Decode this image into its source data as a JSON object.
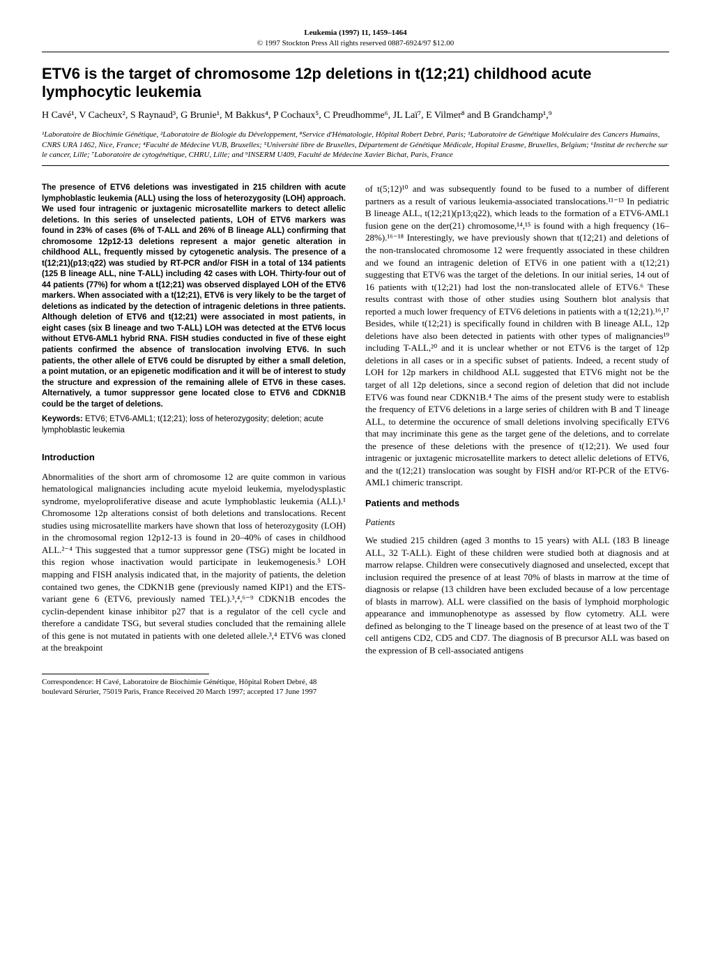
{
  "watermark": "",
  "journal": {
    "title": "Leukemia (1997) 11, 1459–1464",
    "copyright": "© 1997 Stockton Press All rights reserved 0887-6924/97 $12.00"
  },
  "article": {
    "title": "ETV6 is the target of chromosome 12p deletions in t(12;21) childhood acute lymphocytic leukemia",
    "authors": "H Cavé¹, V Cacheux², S Raynaud³, G Brunie¹, M Bakkus⁴, P Cochaux⁵, C Preudhomme⁶, JL Laï⁷, E Vilmer⁸ and B Grandchamp¹,⁹",
    "affiliations": "¹Laboratoire de Biochimie Génétique, ²Laboratoire de Biologie du Développement, ⁸Service d'Hématologie, Hôpital Robert Debré, Paris; ³Laboratoire de Génétique Moléculaire des Cancers Humains, CNRS URA 1462, Nice, France; ⁴Faculté de Médecine VUB, Bruxelles; ⁵Université libre de Bruxelles, Département de Génétique Médicale, Hopital Erasme, Bruxelles, Belgium; ⁶Institut de recherche sur le cancer, Lille; ⁷Laboratoire de cytogénétique, CHRU, Lille; and ⁹INSERM U409, Faculté de Médecine Xavier Bichat, Paris, France"
  },
  "abstract": "The presence of ETV6 deletions was investigated in 215 children with acute lymphoblastic leukemia (ALL) using the loss of heterozygosity (LOH) approach. We used four intragenic or juxtagenic microsatellite markers to detect allelic deletions. In this series of unselected patients, LOH of ETV6 markers was found in 23% of cases (6% of T-ALL and 26% of B lineage ALL) confirming that chromosome 12p12-13 deletions represent a major genetic alteration in childhood ALL, frequently missed by cytogenetic analysis. The presence of a t(12;21)(p13;q22) was studied by RT-PCR and/or FISH in a total of 134 patients (125 B lineage ALL, nine T-ALL) including 42 cases with LOH. Thirty-four out of 44 patients (77%) for whom a t(12;21) was observed displayed LOH of the ETV6 markers. When associated with a t(12;21), ETV6 is very likely to be the target of deletions as indicated by the detection of intragenic deletions in three patients. Although deletion of ETV6 and t(12;21) were associated in most patients, in eight cases (six B lineage and two T-ALL) LOH was detected at the ETV6 locus without ETV6-AML1 hybrid RNA. FISH studies conducted in five of these eight patients confirmed the absence of translocation involving ETV6. In such patients, the other allele of ETV6 could be disrupted by either a small deletion, a point mutation, or an epigenetic modification and it will be of interest to study the structure and expression of the remaining allele of ETV6 in these cases. Alternatively, a tumor suppressor gene located close to ETV6 and CDKN1B could be the target of deletions.",
  "keywords_label": "Keywords:",
  "keywords": " ETV6; ETV6-AML1; t(12;21); loss of heterozygosity; deletion; acute lymphoblastic leukemia",
  "sections": {
    "introduction_heading": "Introduction",
    "introduction": "Abnormalities of the short arm of chromosome 12 are quite common in various hematological malignancies including acute myeloid leukemia, myelodysplastic syndrome, myeloproliferative disease and acute lymphoblastic leukemia (ALL).¹ Chromosome 12p alterations consist of both deletions and translocations. Recent studies using microsatellite markers have shown that loss of heterozygosity (LOH) in the chromosomal region 12p12-13 is found in 20–40% of cases in childhood ALL.²⁻⁴ This suggested that a tumor suppressor gene (TSG) might be located in this region whose inactivation would participate in leukemogenesis.⁵ LOH mapping and FISH analysis indicated that, in the majority of patients, the deletion contained two genes, the CDKN1B gene (previously named KIP1) and the ETS-variant gene 6 (ETV6, previously named TEL).³,⁴,⁶⁻⁹ CDKN1B encodes the cyclin-dependent kinase inhibitor p27 that is a regulator of the cell cycle and therefore a candidate TSG, but several studies concluded that the remaining allele of this gene is not mutated in patients with one deleted allele.³,⁴ ETV6 was cloned at the breakpoint",
    "col2_continuation": "of t(5;12)¹⁰ and was subsequently found to be fused to a number of different partners as a result of various leukemia-associated translocations.¹¹⁻¹³ In pediatric B lineage ALL, t(12;21)(p13;q22), which leads to the formation of a ETV6-AML1 fusion gene on the der(21) chromosome,¹⁴,¹⁵ is found with a high frequency (16–28%).¹⁶⁻¹⁸ Interestingly, we have previously shown that t(12;21) and deletions of the non-translocated chromosome 12 were frequently associated in these children and we found an intragenic deletion of ETV6 in one patient with a t(12;21) suggesting that ETV6 was the target of the deletions. In our initial series, 14 out of 16 patients with t(12;21) had lost the non-translocated allele of ETV6.⁶ These results contrast with those of other studies using Southern blot analysis that reported a much lower frequency of ETV6 deletions in patients with a t(12;21).¹⁶,¹⁷ Besides, while t(12;21) is specifically found in children with B lineage ALL, 12p deletions have also been detected in patients with other types of malignancies¹⁹ including T-ALL,²⁰ and it is unclear whether or not ETV6 is the target of 12p deletions in all cases or in a specific subset of patients. Indeed, a recent study of LOH for 12p markers in childhood ALL suggested that ETV6 might not be the target of all 12p deletions, since a second region of deletion that did not include ETV6 was found near CDKN1B.⁴ The aims of the present study were to establish the frequency of ETV6 deletions in a large series of children with B and T lineage ALL, to determine the occurence of small deletions involving specifically ETV6 that may incriminate this gene as the target gene of the deletions, and to correlate the presence of these deletions with the presence of t(12;21). We used four intragenic or juxtagenic microsatellite markers to detect allelic deletions of ETV6, and the t(12;21) translocation was sought by FISH and/or RT-PCR of the ETV6-AML1 chimeric transcript.",
    "patients_methods_heading": "Patients and methods",
    "patients_subheading": "Patients",
    "patients_body": "We studied 215 children (aged 3 months to 15 years) with ALL (183 B lineage ALL, 32 T-ALL). Eight of these children were studied both at diagnosis and at marrow relapse. Children were consecutively diagnosed and unselected, except that inclusion required the presence of at least 70% of blasts in marrow at the time of diagnosis or relapse (13 children have been excluded because of a low percentage of blasts in marrow). ALL were classified on the basis of lymphoid morphologic appearance and immunophenotype as assessed by flow cytometry. ALL were defined as belonging to the T lineage based on the presence of at least two of the T cell antigens CD2, CD5 and CD7. The diagnosis of B precursor ALL was based on the expression of B cell-associated antigens"
  },
  "correspondence": "Correspondence: H Cavé, Laboratoire de Biochimie Génétique, Hôpital Robert Debré, 48 boulevard Sérurier, 75019 Paris, France\nReceived 20 March 1997; accepted 17 June 1997"
}
